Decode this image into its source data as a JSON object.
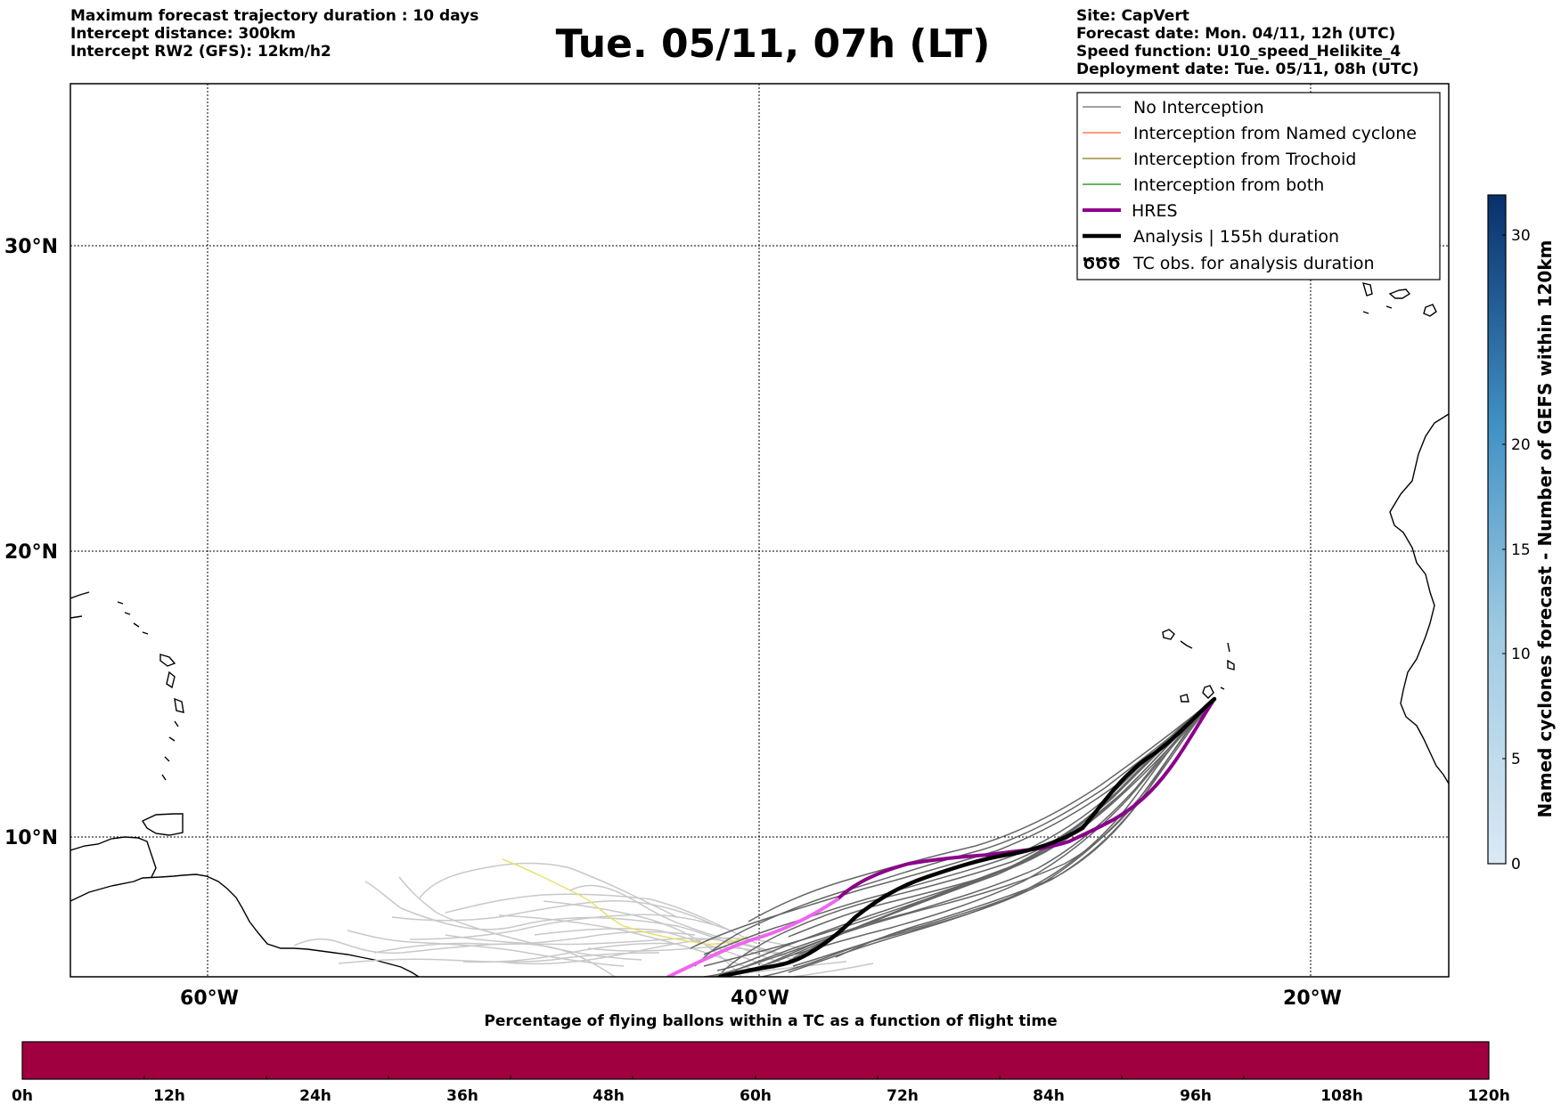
{
  "header": {
    "title": "Tue. 05/11, 07h (LT)",
    "left_lines": [
      "Maximum forecast trajectory duration : 10 days",
      "Intercept distance: 300km",
      "Intercept RW2 (GFS):  12km/h2"
    ],
    "right_lines": [
      "Site: CapVert",
      "Forecast date: Mon. 04/11, 12h (UTC)",
      "Speed function: U10_speed_Helikite_4",
      "Deployment date: Tue. 05/11, 08h (UTC)"
    ]
  },
  "map": {
    "lat_labels": [
      "30°N",
      "20°N",
      "10°N"
    ],
    "lon_labels": [
      "60°W",
      "40°W",
      "20°W"
    ]
  },
  "legend": {
    "items": [
      {
        "label": "No Interception",
        "color": "#808080",
        "kind": "line"
      },
      {
        "label": "Interception from Named cyclone",
        "color": "#ff7f50",
        "kind": "line"
      },
      {
        "label": "Interception from Trochoid",
        "color": "#a08c3c",
        "kind": "line"
      },
      {
        "label": "Interception from both",
        "color": "#2ca02c",
        "kind": "line"
      },
      {
        "label": "HRES",
        "color": "#8b008b",
        "kind": "thick"
      },
      {
        "label": "Analysis | 155h duration",
        "color": "#000000",
        "kind": "thick"
      },
      {
        "label": "TC obs. for analysis duration",
        "color": "#000000",
        "kind": "symbol",
        "symbol": "ԾԾԾ"
      }
    ]
  },
  "colorbar": {
    "label": "Named cyclones forecast - Number of GEFS within 120km",
    "ticks": [
      "0",
      "5",
      "10",
      "15",
      "20",
      "30"
    ],
    "color_low": "#dbe9f6",
    "color_high": "#08306b"
  },
  "timebar": {
    "title": "Percentage of flying ballons within a TC as a function of flight time",
    "ticks": [
      "0h",
      "12h",
      "24h",
      "36h",
      "48h",
      "60h",
      "72h",
      "84h",
      "96h",
      "108h",
      "120h"
    ],
    "color": "#a00040"
  }
}
